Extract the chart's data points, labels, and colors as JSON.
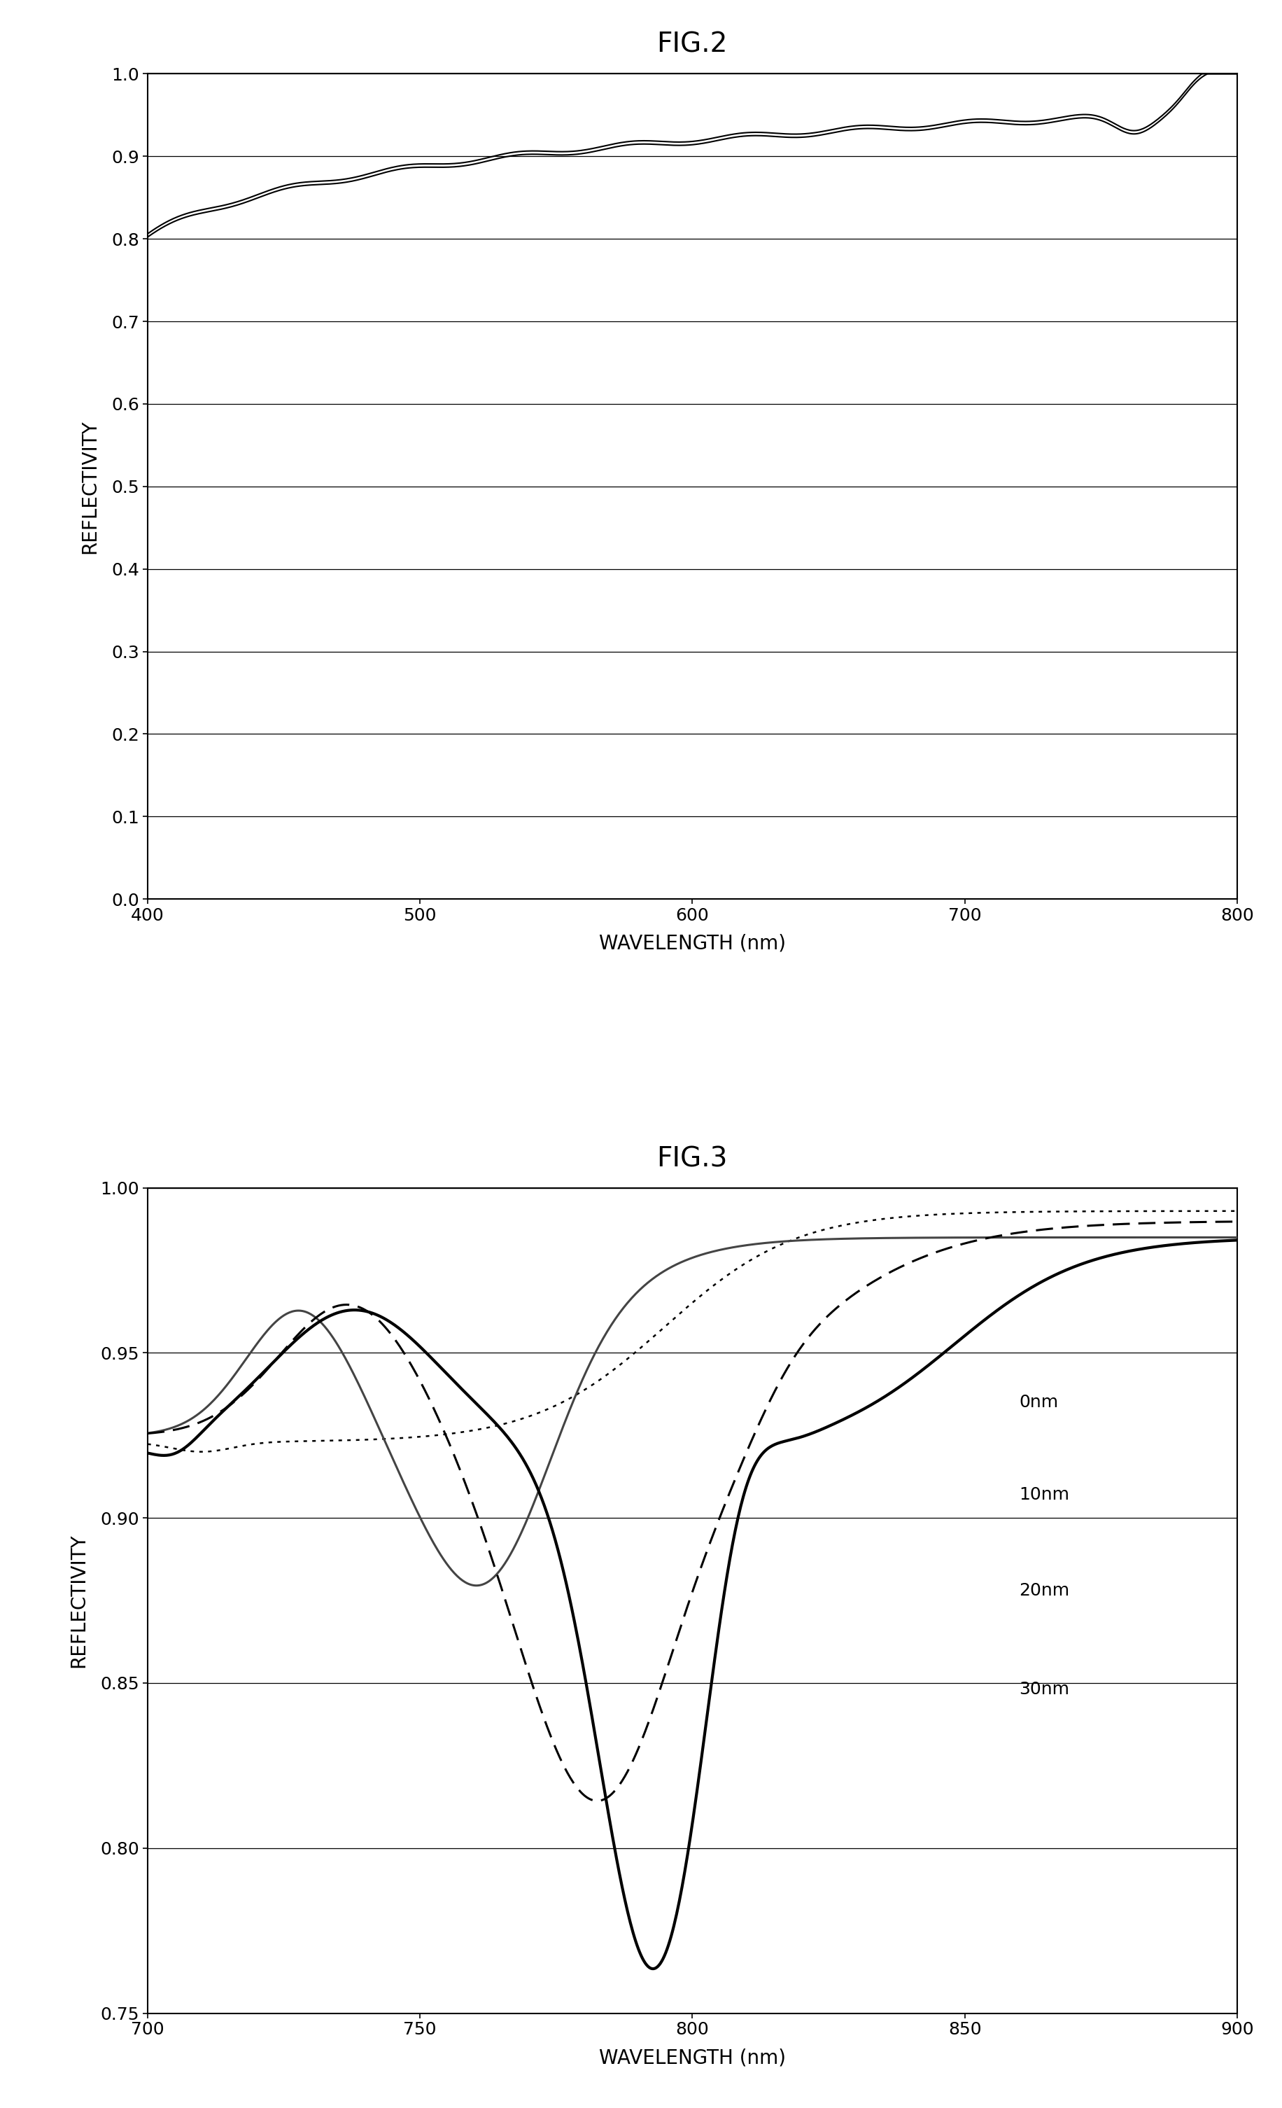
{
  "fig2_title": "FIG.2",
  "fig3_title": "FIG.3",
  "fig2_xlabel": "WAVELENGTH (nm)",
  "fig2_ylabel": "REFLECTIVITY",
  "fig3_xlabel": "WAVELENGTH (nm)",
  "fig3_ylabel": "REFLECTIVITY",
  "fig2_xlim": [
    400,
    800
  ],
  "fig2_ylim": [
    0.0,
    1.0
  ],
  "fig3_xlim": [
    700,
    900
  ],
  "fig3_ylim": [
    0.75,
    1.0
  ],
  "fig3_yticks": [
    0.75,
    0.8,
    0.85,
    0.9,
    0.95,
    1.0
  ],
  "fig2_yticks": [
    0.0,
    0.1,
    0.2,
    0.3,
    0.4,
    0.5,
    0.6,
    0.7,
    0.8,
    0.9,
    1.0
  ],
  "fig2_xticks": [
    400,
    500,
    600,
    700,
    800
  ],
  "fig3_xticks": [
    700,
    750,
    800,
    850,
    900
  ],
  "background_color": "#ffffff",
  "title_fontsize": 28,
  "axis_label_fontsize": 20,
  "tick_fontsize": 18,
  "annot_fontsize": 18
}
